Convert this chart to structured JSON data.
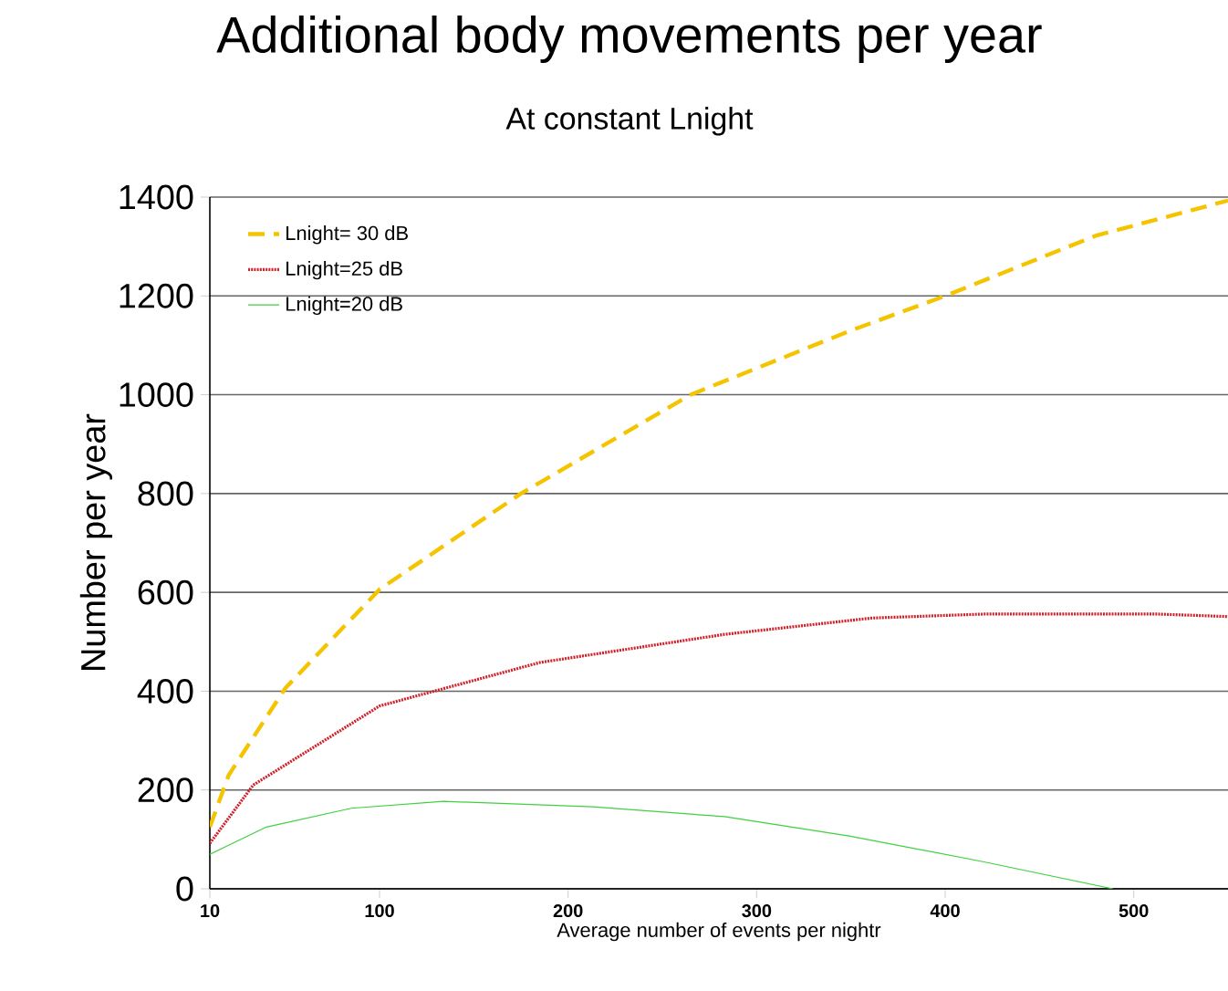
{
  "chart_data": {
    "type": "line",
    "title": "Additional body movements per year",
    "subtitle": "At constant Lnight",
    "xlabel": "Average number of events per nightr",
    "ylabel": "Number per year",
    "xlim": [
      10,
      550
    ],
    "xticks": [
      10,
      100,
      200,
      300,
      400,
      500
    ],
    "ylim": [
      0,
      1400
    ],
    "yticks": [
      0,
      200,
      400,
      600,
      800,
      1000,
      1200,
      1400
    ],
    "grid": "y",
    "legend": "top left",
    "series": [
      {
        "name": "Lnight= 30 dB",
        "color": "#f5c400",
        "line_style": "dashed",
        "x": [
          10,
          20,
          50,
          100,
          175,
          265,
          350,
          400,
          480,
          550
        ],
        "values": [
          125,
          230,
          406,
          606,
          800,
          1000,
          1130,
          1200,
          1322,
          1393
        ]
      },
      {
        "name": "Lnight=25 dB",
        "color": "#d0202a",
        "line_style": "dotted",
        "x": [
          10,
          33,
          100,
          185,
          283,
          361,
          420,
          513,
          550
        ],
        "values": [
          92,
          210,
          370,
          458,
          515,
          548,
          556,
          556,
          551
        ]
      },
      {
        "name": "Lnight=20 dB",
        "color": "#40d040",
        "line_style": "solid",
        "x": [
          10,
          40,
          85,
          134,
          213,
          283,
          349,
          420,
          489
        ],
        "values": [
          70,
          125,
          163,
          177,
          166,
          146,
          107,
          55,
          0
        ]
      }
    ]
  }
}
